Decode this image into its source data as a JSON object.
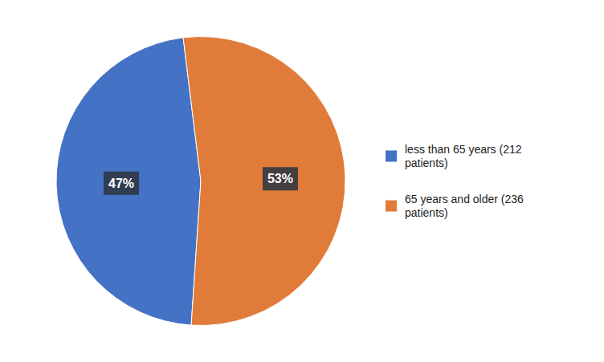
{
  "chart_data": {
    "type": "pie",
    "categories": [
      "less than 65 years (212\npatients)",
      "65 years and older (236\npatients)"
    ],
    "values": [
      47,
      53
    ],
    "value_labels": [
      "47%",
      "53%"
    ],
    "colors": [
      "#4472c4",
      "#e07b39"
    ],
    "data_labels": true,
    "legend": "right"
  }
}
